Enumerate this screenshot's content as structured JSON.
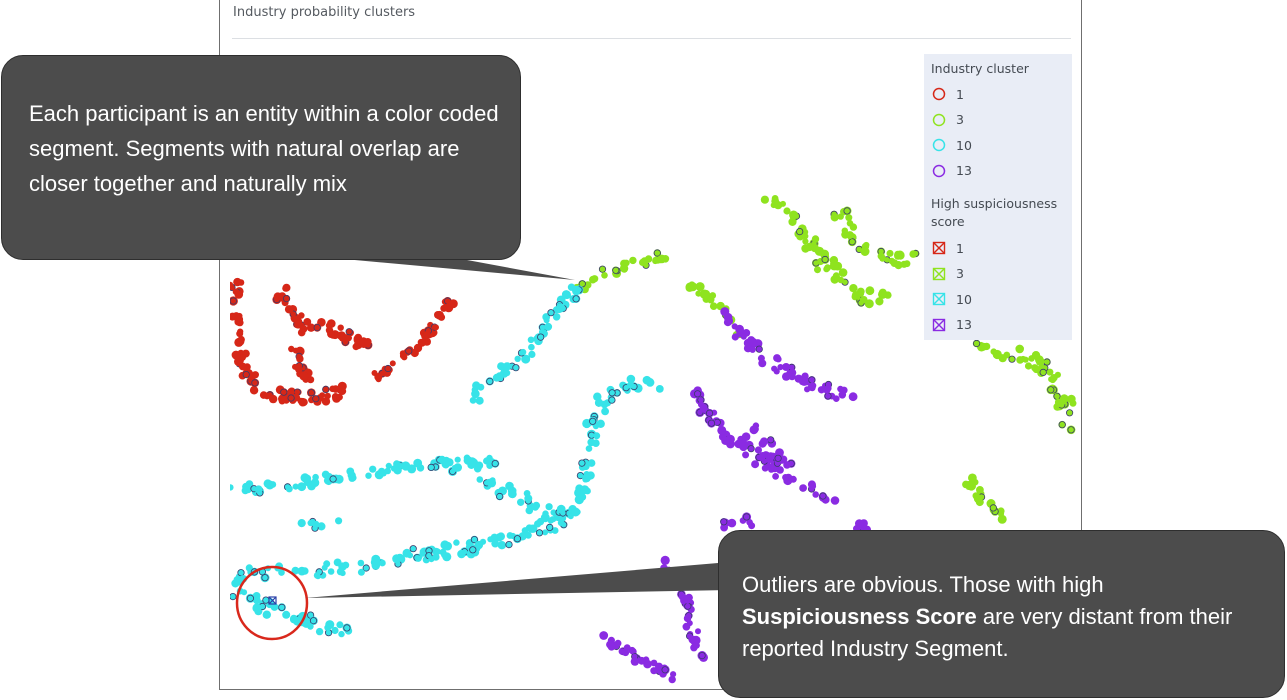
{
  "panel": {
    "title": "Industry probability clusters"
  },
  "legend": {
    "cluster_title": "Industry cluster",
    "suspicious_title": "High suspiciousness score",
    "clusters": [
      {
        "label": "1",
        "color": "#d62718"
      },
      {
        "label": "3",
        "color": "#8fe31f"
      },
      {
        "label": "10",
        "color": "#37e3e8"
      },
      {
        "label": "13",
        "color": "#8a2be2"
      }
    ],
    "suspicious": [
      {
        "label": "1",
        "color": "#d62718"
      },
      {
        "label": "3",
        "color": "#8fe31f"
      },
      {
        "label": "10",
        "color": "#37e3e8"
      },
      {
        "label": "13",
        "color": "#8a2be2"
      }
    ]
  },
  "callouts": {
    "top": "Each participant is an entity within a color coded segment. Segments with natural overlap are closer together and naturally mix",
    "bottom_pre": "Outliers are obvious. Those with high ",
    "bottom_bold": "Suspiciousness Score",
    "bottom_post": " are very distant from their reported Industry Segment."
  },
  "chart_data": {
    "type": "scatter",
    "title": "Industry probability clusters",
    "xlabel": "",
    "ylabel": "",
    "grid": false,
    "legend_placement": "top-right",
    "series": [
      {
        "name": "1",
        "color": "#d62718"
      },
      {
        "name": "3",
        "color": "#8fe31f"
      },
      {
        "name": "10",
        "color": "#37e3e8"
      },
      {
        "name": "13",
        "color": "#8a2be2"
      }
    ],
    "suspicious_series": [
      "1",
      "3",
      "10",
      "13"
    ]
  }
}
